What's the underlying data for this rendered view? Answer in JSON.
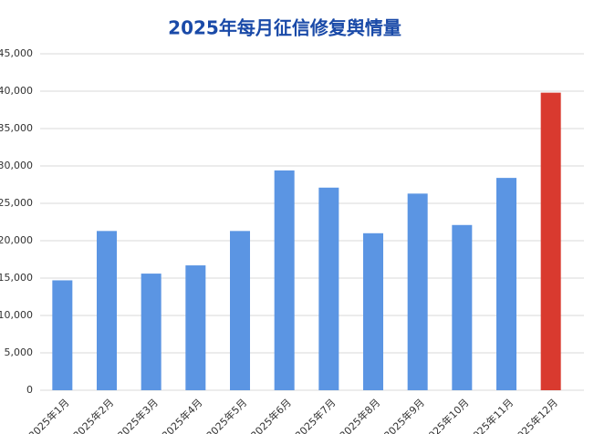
{
  "chart_data": {
    "type": "bar",
    "title": "2025年每月征信修复舆情量",
    "categories": [
      "2025年1月",
      "2025年2月",
      "2025年3月",
      "2025年4月",
      "2025年5月",
      "2025年6月",
      "2025年7月",
      "2025年8月",
      "2025年9月",
      "2025年10月",
      "2025年11月",
      "2025年12月"
    ],
    "values": [
      14700,
      21300,
      15600,
      16700,
      21300,
      29400,
      27100,
      21000,
      26300,
      22100,
      28400,
      39800
    ],
    "colors": [
      "#5b95e3",
      "#5b95e3",
      "#5b95e3",
      "#5b95e3",
      "#5b95e3",
      "#5b95e3",
      "#5b95e3",
      "#5b95e3",
      "#5b95e3",
      "#5b95e3",
      "#5b95e3",
      "#d93a2f"
    ],
    "ylim": [
      0,
      45000
    ],
    "yticks": [
      0,
      {
        "value": 5000,
        "label": "5,000"
      },
      {
        "value": 10000,
        "label": "10,000"
      },
      {
        "value": 15000,
        "label": "15,000"
      },
      {
        "value": 20000,
        "label": "20,000"
      },
      {
        "value": 25000,
        "label": "25,000"
      },
      {
        "value": 30000,
        "label": "30,000"
      },
      {
        "value": 35000,
        "label": "35,000"
      },
      {
        "value": 40000,
        "label": "40,000"
      },
      {
        "value": 45000,
        "label": "45,000"
      }
    ],
    "grid": true
  }
}
